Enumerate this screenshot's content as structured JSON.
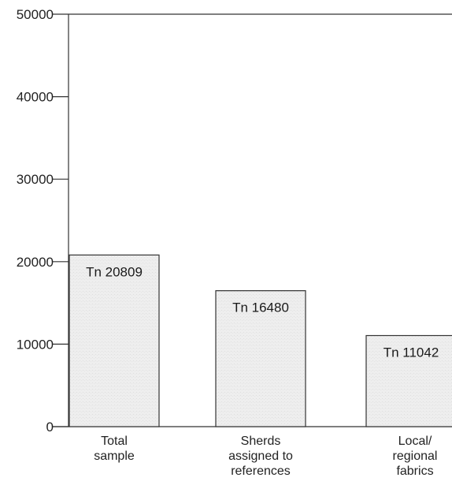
{
  "chart_data": {
    "type": "bar",
    "title": "",
    "xlabel": "",
    "ylabel": "",
    "ylim": [
      0,
      50000
    ],
    "yticks": [
      0,
      10000,
      20000,
      30000,
      40000,
      50000
    ],
    "grid": false,
    "categories": [
      [
        "Total",
        "sample"
      ],
      [
        "Sherds",
        "assigned to",
        "references"
      ],
      [
        "Local/",
        "regional",
        "fabrics"
      ]
    ],
    "values": [
      20809,
      16480,
      11042
    ],
    "data_labels": [
      "Tn 20809",
      "Tn 16480",
      "Tn 11042"
    ],
    "colors": {
      "bar_fill": "#eeeeee",
      "bar_stroke": "#333333",
      "axis": "#333333"
    }
  }
}
